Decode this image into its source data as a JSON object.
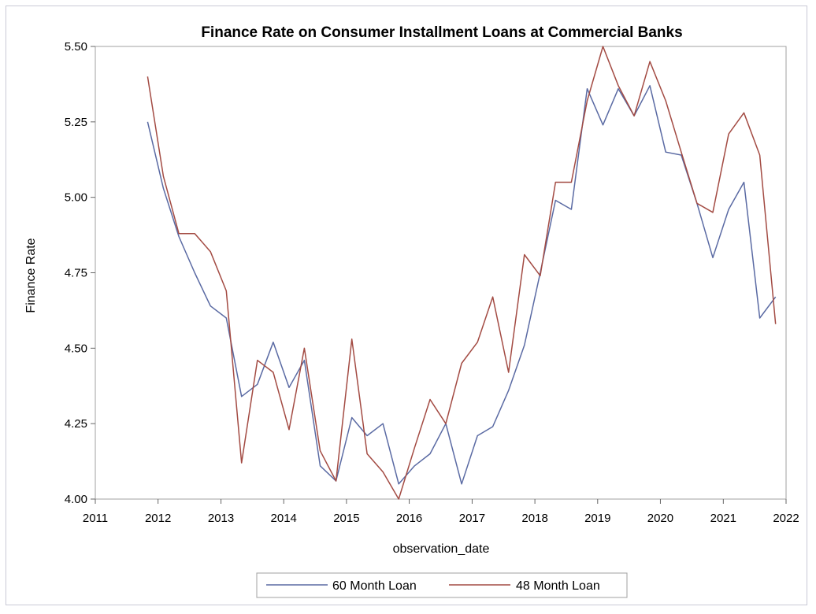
{
  "chart_data": {
    "type": "line",
    "title": "Finance Rate on Consumer Installment Loans at Commercial Banks",
    "xlabel": "observation_date",
    "ylabel": "Finance Rate",
    "xlim": [
      "2011-01-01",
      "2022-01-01"
    ],
    "ylim": [
      4.0,
      5.5
    ],
    "x_ticks": [
      "2011",
      "2012",
      "2013",
      "2014",
      "2015",
      "2016",
      "2017",
      "2018",
      "2019",
      "2020",
      "2021",
      "2022"
    ],
    "y_ticks": [
      "4.00",
      "4.25",
      "4.50",
      "4.75",
      "5.00",
      "5.25",
      "5.50"
    ],
    "grid": false,
    "legend_position": "bottom",
    "x": [
      "2011-11-01",
      "2012-02-01",
      "2012-05-01",
      "2012-08-01",
      "2012-11-01",
      "2013-02-01",
      "2013-05-01",
      "2013-08-01",
      "2013-11-01",
      "2014-02-01",
      "2014-05-01",
      "2014-08-01",
      "2014-11-01",
      "2015-02-01",
      "2015-05-01",
      "2015-08-01",
      "2015-11-01",
      "2016-02-01",
      "2016-05-01",
      "2016-08-01",
      "2016-11-01",
      "2017-02-01",
      "2017-05-01",
      "2017-08-01",
      "2017-11-01",
      "2018-02-01",
      "2018-05-01",
      "2018-08-01",
      "2018-11-01",
      "2019-02-01",
      "2019-05-01",
      "2019-08-01",
      "2019-11-01",
      "2020-02-01",
      "2020-05-01",
      "2020-08-01",
      "2020-11-01",
      "2021-02-01",
      "2021-05-01",
      "2021-08-01",
      "2021-11-01"
    ],
    "series": [
      {
        "name": "60 Month Loan",
        "color": "#5a6aa3",
        "values": [
          5.25,
          5.03,
          4.87,
          4.75,
          4.64,
          4.6,
          4.34,
          4.38,
          4.52,
          4.37,
          4.46,
          4.11,
          4.06,
          4.27,
          4.21,
          4.25,
          4.05,
          4.11,
          4.15,
          4.25,
          4.05,
          4.21,
          4.24,
          4.36,
          4.51,
          4.75,
          4.99,
          4.96,
          5.36,
          5.24,
          5.36,
          5.27,
          5.37,
          5.15,
          5.14,
          4.98,
          4.8,
          4.96,
          5.05,
          4.6,
          4.67
        ]
      },
      {
        "name": "48 Month Loan",
        "color": "#a34b43",
        "values": [
          5.4,
          5.07,
          4.88,
          4.88,
          4.82,
          4.69,
          4.12,
          4.46,
          4.42,
          4.23,
          4.5,
          4.16,
          4.06,
          4.53,
          4.15,
          4.09,
          4.0,
          4.17,
          4.33,
          4.25,
          4.45,
          4.52,
          4.67,
          4.42,
          4.81,
          4.74,
          5.05,
          5.05,
          5.32,
          5.5,
          5.37,
          5.27,
          5.45,
          5.32,
          5.15,
          4.98,
          4.95,
          5.21,
          5.28,
          5.14,
          4.58
        ]
      }
    ]
  }
}
